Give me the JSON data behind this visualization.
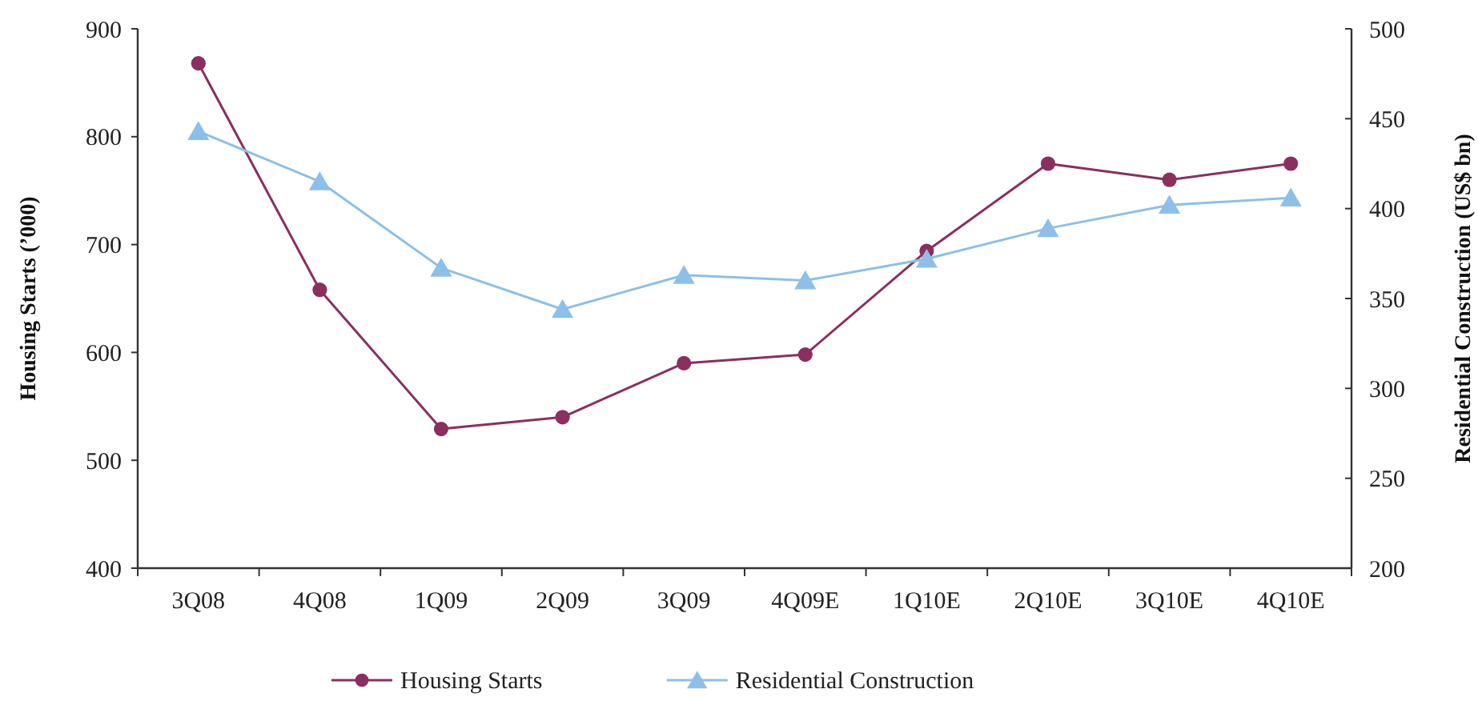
{
  "chart_data": {
    "type": "line",
    "categories": [
      "3Q08",
      "4Q08",
      "1Q09",
      "2Q09",
      "3Q09",
      "4Q09E",
      "1Q10E",
      "2Q10E",
      "3Q10E",
      "4Q10E"
    ],
    "ylabel": "Housing Starts (’000)",
    "y2label": "Residential Construction (US$ bn)",
    "ylim": [
      400,
      900
    ],
    "yticks": [
      400,
      500,
      600,
      700,
      800,
      900
    ],
    "y2lim": [
      200,
      500
    ],
    "y2ticks": [
      200,
      250,
      300,
      350,
      400,
      450,
      500
    ],
    "grid": false,
    "legend": "bottom",
    "line_style": "solid",
    "series": [
      {
        "name": "Housing Starts",
        "color": "#8b2f5f",
        "marker": "circle",
        "values": [
          868,
          658,
          529,
          540,
          590,
          598,
          694,
          775,
          760,
          775
        ]
      },
      {
        "name": "Residential Construction",
        "color": "#8dc0e9",
        "marker": "triangle",
        "axis": "y2",
        "values": [
          443,
          415,
          367,
          344,
          363,
          360,
          372,
          389,
          402,
          406
        ]
      }
    ]
  }
}
